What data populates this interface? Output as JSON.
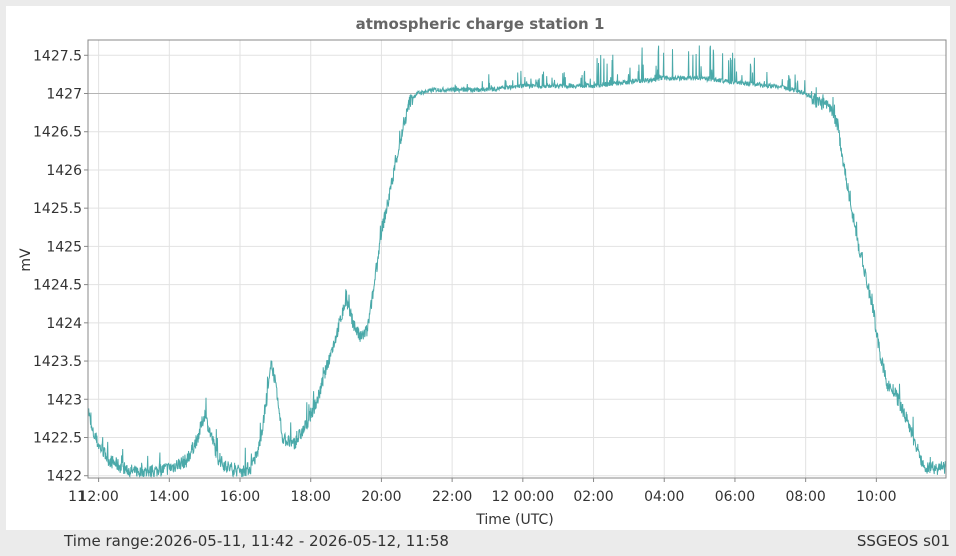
{
  "footer": {
    "range_label": "Time range:",
    "range_value": "2026-05-11, 11:42 - 2026-05-12, 11:58",
    "station": "SSGEOS s01"
  },
  "colors": {
    "series": "#4aa9a9",
    "grid": "#e2e2e2",
    "axis": "#888888",
    "reference_line": "#b4b4b4",
    "text": "#333333",
    "title": "#666666"
  },
  "chart_data": {
    "type": "line",
    "title": "atmospheric charge station 1",
    "xlabel": "Time (UTC)",
    "ylabel": "mV",
    "x_unit": "hours since 2026-05-11 00:00 UTC",
    "xlim": [
      11.7,
      35.97
    ],
    "ylim": [
      1421.97,
      1427.7
    ],
    "grid": true,
    "legend": "none",
    "reference_line_y": 1427,
    "x_ticks": [
      {
        "value": 11.0,
        "label": "11"
      },
      {
        "value": 12.0,
        "label": "12:00"
      },
      {
        "value": 14.0,
        "label": "14:00"
      },
      {
        "value": 16.0,
        "label": "16:00"
      },
      {
        "value": 18.0,
        "label": "18:00"
      },
      {
        "value": 20.0,
        "label": "20:00"
      },
      {
        "value": 22.0,
        "label": "22:00"
      },
      {
        "value": 24.0,
        "label": "12 00:00"
      },
      {
        "value": 26.0,
        "label": "02:00"
      },
      {
        "value": 28.0,
        "label": "04:00"
      },
      {
        "value": 30.0,
        "label": "06:00"
      },
      {
        "value": 32.0,
        "label": "08:00"
      },
      {
        "value": 34.0,
        "label": "10:00"
      }
    ],
    "y_ticks": [
      {
        "value": 1422,
        "label": "1422"
      },
      {
        "value": 1422.5,
        "label": "1422.5"
      },
      {
        "value": 1423,
        "label": "1423"
      },
      {
        "value": 1423.5,
        "label": "1423.5"
      },
      {
        "value": 1424,
        "label": "1424"
      },
      {
        "value": 1424.5,
        "label": "1424.5"
      },
      {
        "value": 1425,
        "label": "1425"
      },
      {
        "value": 1425.5,
        "label": "1425.5"
      },
      {
        "value": 1426,
        "label": "1426"
      },
      {
        "value": 1426.5,
        "label": "1426.5"
      },
      {
        "value": 1427,
        "label": "1427"
      },
      {
        "value": 1427.5,
        "label": "1427.5"
      }
    ],
    "series": [
      {
        "name": "",
        "x": [
          11.7,
          11.8,
          12.0,
          12.3,
          12.7,
          13.0,
          13.5,
          14.0,
          14.5,
          14.8,
          15.0,
          15.2,
          15.4,
          15.7,
          16.0,
          16.3,
          16.5,
          16.7,
          16.9,
          17.0,
          17.2,
          17.5,
          17.8,
          18.0,
          18.2,
          18.5,
          18.7,
          19.0,
          19.2,
          19.4,
          19.6,
          19.8,
          20.0,
          20.2,
          20.4,
          20.6,
          20.8,
          21.0,
          21.5,
          22.0,
          23.0,
          24.0,
          25.0,
          26.0,
          27.0,
          28.0,
          29.0,
          30.0,
          31.0,
          31.7,
          32.0,
          32.3,
          32.6,
          32.9,
          33.1,
          33.3,
          33.5,
          33.7,
          33.9,
          34.1,
          34.3,
          34.5,
          34.7,
          34.9,
          35.1,
          35.3,
          35.5,
          35.7,
          35.97
        ],
        "y": [
          1422.9,
          1422.6,
          1422.4,
          1422.2,
          1422.1,
          1422.05,
          1422.05,
          1422.1,
          1422.2,
          1422.5,
          1422.8,
          1422.5,
          1422.2,
          1422.1,
          1422.05,
          1422.1,
          1422.3,
          1422.8,
          1423.5,
          1423.2,
          1422.5,
          1422.4,
          1422.6,
          1422.8,
          1423.0,
          1423.5,
          1423.8,
          1424.3,
          1424.0,
          1423.8,
          1423.9,
          1424.5,
          1425.2,
          1425.6,
          1426.1,
          1426.5,
          1426.9,
          1427.0,
          1427.05,
          1427.05,
          1427.05,
          1427.1,
          1427.1,
          1427.1,
          1427.15,
          1427.2,
          1427.2,
          1427.15,
          1427.1,
          1427.05,
          1427.0,
          1426.9,
          1426.85,
          1426.6,
          1426.0,
          1425.5,
          1425.0,
          1424.6,
          1424.2,
          1423.6,
          1423.2,
          1423.1,
          1422.9,
          1422.7,
          1422.4,
          1422.15,
          1422.1,
          1422.1,
          1422.1
        ]
      }
    ]
  }
}
